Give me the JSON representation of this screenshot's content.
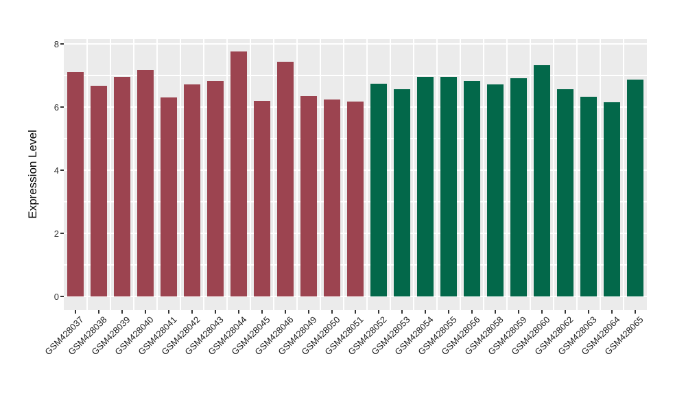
{
  "chart_data": {
    "type": "bar",
    "title": "",
    "xlabel": "",
    "ylabel": "Expression Level",
    "ylim": [
      0,
      8
    ],
    "yticks_major": [
      0,
      2,
      4,
      6,
      8
    ],
    "yticks_minor": [
      1,
      3,
      5,
      7
    ],
    "grid": "on",
    "legend_position": "none",
    "panel_background_color": "#EBEBEB",
    "gridline_color": "#FFFFFF",
    "groups": [
      {
        "name": "group-1",
        "color": "#9C4450"
      },
      {
        "name": "group-2",
        "color": "#03684A"
      }
    ],
    "categories": [
      "GSM428037",
      "GSM428038",
      "GSM428039",
      "GSM428040",
      "GSM428041",
      "GSM428042",
      "GSM428043",
      "GSM428044",
      "GSM428045",
      "GSM428046",
      "GSM428049",
      "GSM428050",
      "GSM428051",
      "GSM428052",
      "GSM428053",
      "GSM428054",
      "GSM428055",
      "GSM428056",
      "GSM428058",
      "GSM428059",
      "GSM428060",
      "GSM428062",
      "GSM428063",
      "GSM428064",
      "GSM428065"
    ],
    "bars": [
      {
        "label": "GSM428037",
        "value": 7.11,
        "group": 0
      },
      {
        "label": "GSM428038",
        "value": 6.67,
        "group": 0
      },
      {
        "label": "GSM428039",
        "value": 6.96,
        "group": 0
      },
      {
        "label": "GSM428040",
        "value": 7.18,
        "group": 0
      },
      {
        "label": "GSM428041",
        "value": 6.31,
        "group": 0
      },
      {
        "label": "GSM428042",
        "value": 6.71,
        "group": 0
      },
      {
        "label": "GSM428043",
        "value": 6.83,
        "group": 0
      },
      {
        "label": "GSM428044",
        "value": 7.77,
        "group": 0
      },
      {
        "label": "GSM428045",
        "value": 6.19,
        "group": 0
      },
      {
        "label": "GSM428046",
        "value": 7.43,
        "group": 0
      },
      {
        "label": "GSM428049",
        "value": 6.35,
        "group": 0
      },
      {
        "label": "GSM428050",
        "value": 6.23,
        "group": 0
      },
      {
        "label": "GSM428051",
        "value": 6.17,
        "group": 0
      },
      {
        "label": "GSM428052",
        "value": 6.73,
        "group": 1
      },
      {
        "label": "GSM428053",
        "value": 6.56,
        "group": 1
      },
      {
        "label": "GSM428054",
        "value": 6.96,
        "group": 1
      },
      {
        "label": "GSM428055",
        "value": 6.96,
        "group": 1
      },
      {
        "label": "GSM428056",
        "value": 6.83,
        "group": 1
      },
      {
        "label": "GSM428058",
        "value": 6.72,
        "group": 1
      },
      {
        "label": "GSM428059",
        "value": 6.92,
        "group": 1
      },
      {
        "label": "GSM428060",
        "value": 7.32,
        "group": 1
      },
      {
        "label": "GSM428062",
        "value": 6.56,
        "group": 1
      },
      {
        "label": "GSM428063",
        "value": 6.33,
        "group": 1
      },
      {
        "label": "GSM428064",
        "value": 6.15,
        "group": 1
      },
      {
        "label": "GSM428065",
        "value": 6.87,
        "group": 1
      }
    ]
  }
}
